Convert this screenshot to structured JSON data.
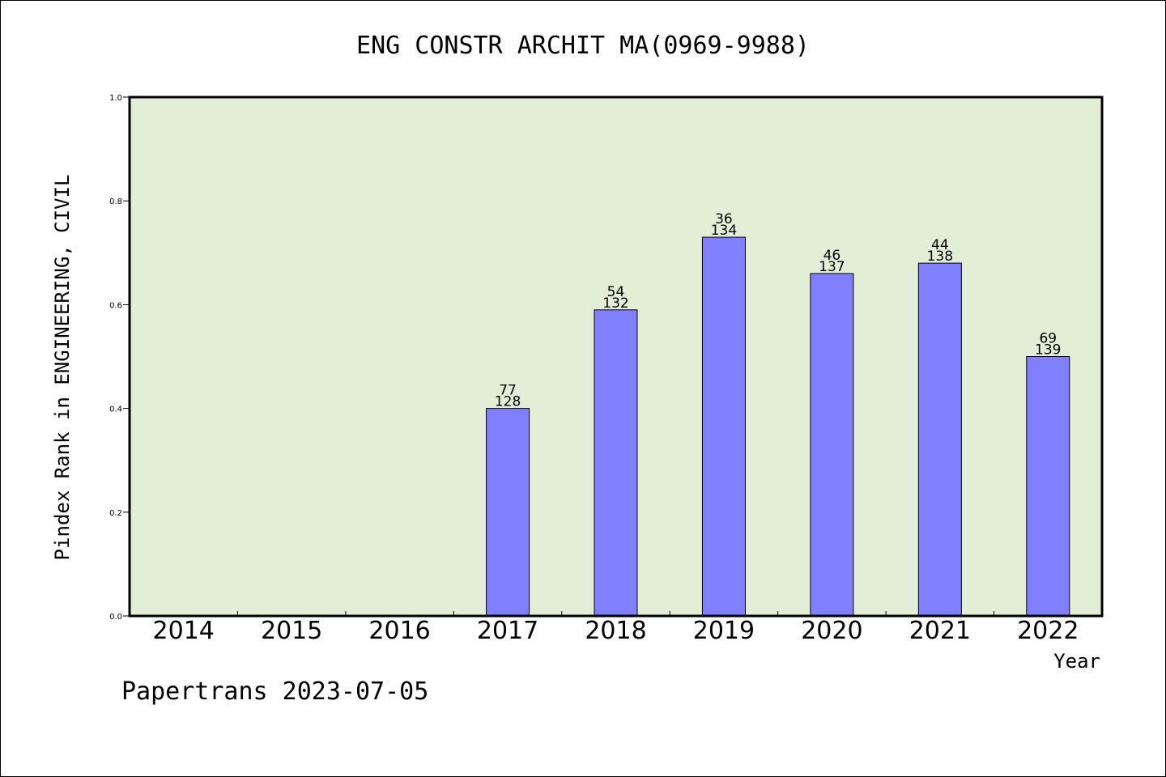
{
  "chart_data": {
    "type": "bar",
    "title": "ENG CONSTR ARCHIT MA(0969-9988)",
    "xlabel": "Year",
    "ylabel": "Pindex Rank in ENGINEERING, CIVIL",
    "ylim": [
      0,
      1.0
    ],
    "yticks": [
      "0.0",
      "0.2",
      "0.4",
      "0.6",
      "0.8",
      "1.0"
    ],
    "categories": [
      "2014",
      "2015",
      "2016",
      "2017",
      "2018",
      "2019",
      "2020",
      "2021",
      "2022"
    ],
    "values": [
      null,
      null,
      null,
      0.4,
      0.59,
      0.73,
      0.66,
      0.68,
      0.5
    ],
    "labels_top": [
      "",
      "",
      "",
      "77",
      "54",
      "36",
      "46",
      "44",
      "69"
    ],
    "labels_bottom": [
      "",
      "",
      "",
      "128",
      "132",
      "134",
      "137",
      "138",
      "139"
    ],
    "grid": false,
    "colors": {
      "bar": "#8080ff",
      "plot_background": "#e2efd6",
      "axis": "#000000"
    }
  },
  "footer": "Papertrans 2023-07-05"
}
